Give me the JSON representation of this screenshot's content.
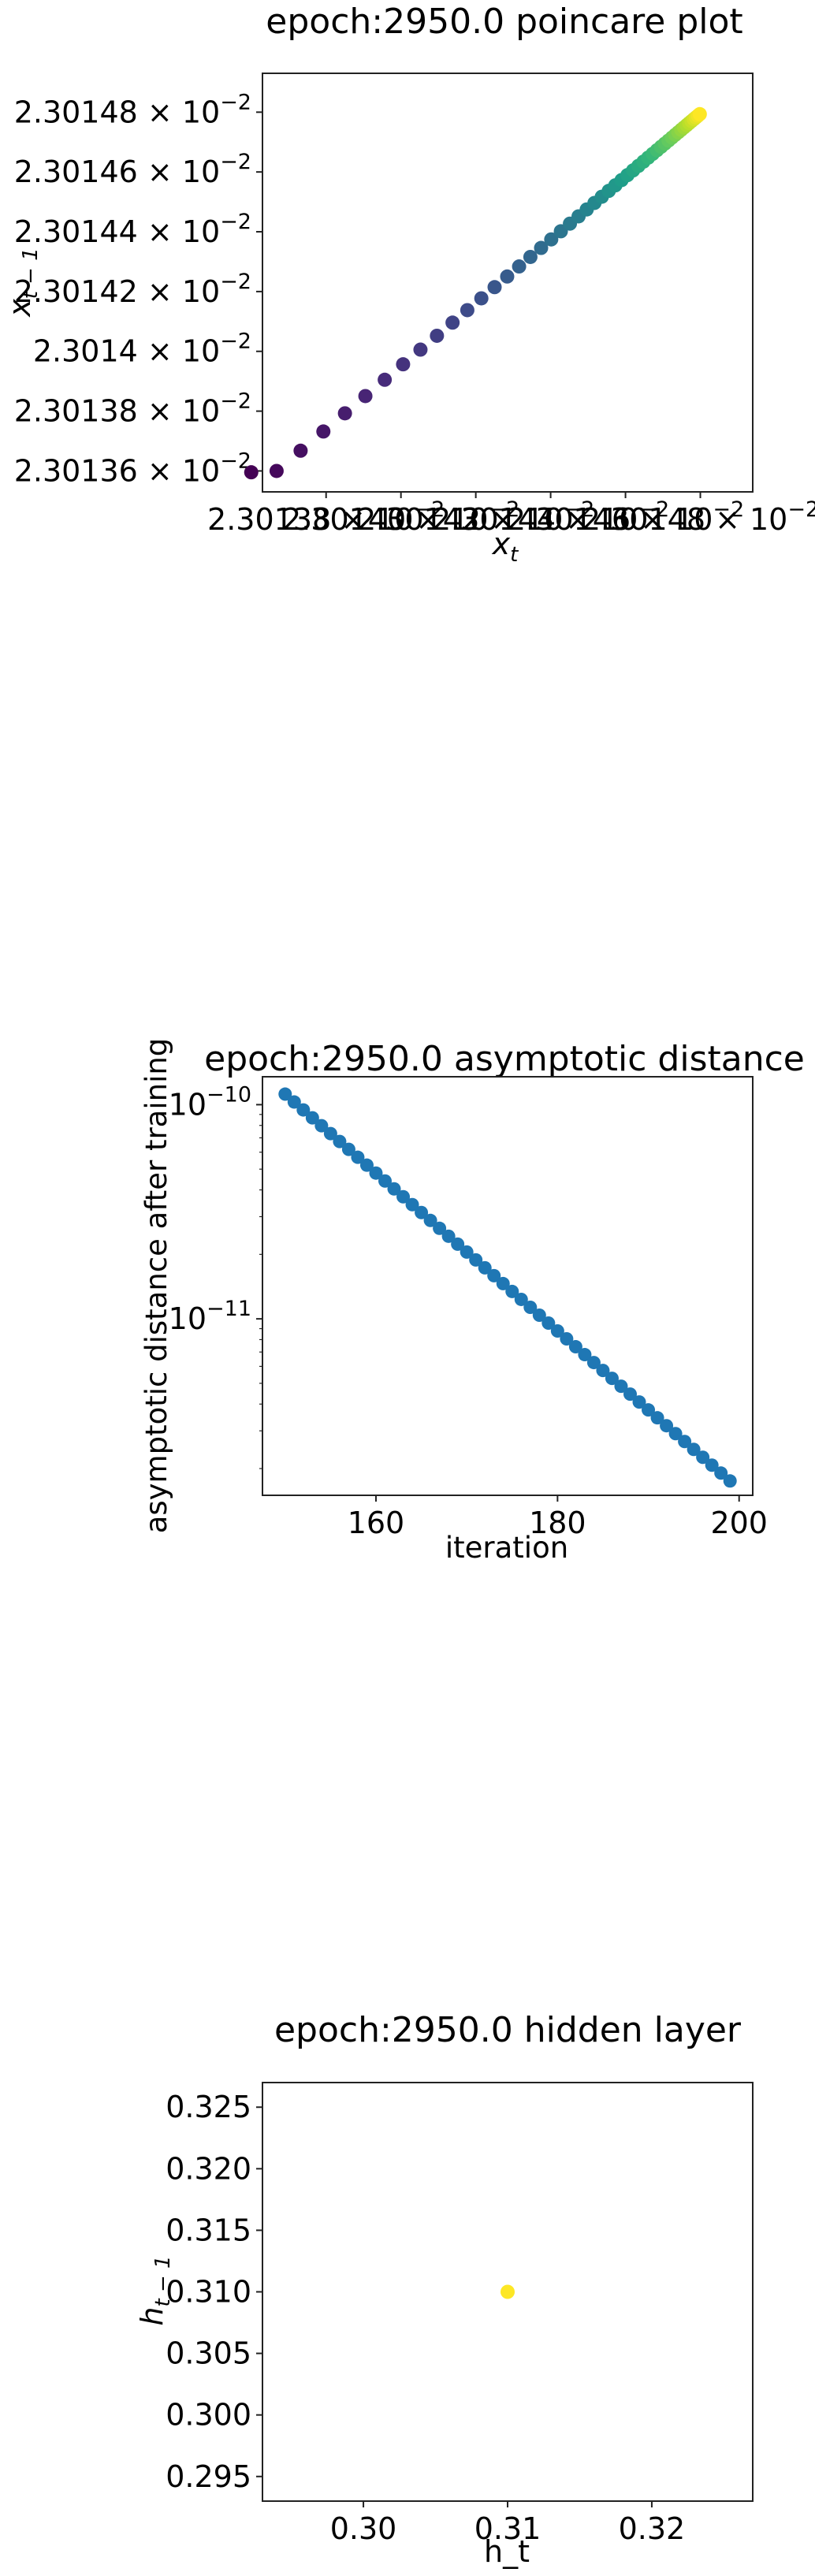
{
  "chart_data": [
    {
      "type": "scatter",
      "title": "epoch:2950.0 poincare plot",
      "xlabel": "x_t",
      "ylabel": "x_{t-1}",
      "x_tick_labels": [
        "2.30138 × 10^-2",
        "2.30140 × 10^-2",
        "2.30142 × 10^-2",
        "2.30144 × 10^-2",
        "2.30146 × 10^-2",
        "2.30148 × 10^-2"
      ],
      "y_tick_labels": [
        "2.30136 × 10^-2",
        "2.30138 × 10^-2",
        "2.3014 × 10^-2",
        "2.30142 × 10^-2",
        "2.30144 × 10^-2",
        "2.30146 × 10^-2",
        "2.30148 × 10^-2"
      ],
      "axis_scale": "log",
      "colormap": "viridis",
      "xlim": [
        0.02301363,
        0.02301494
      ],
      "ylim": [
        0.02301353,
        0.02301493
      ],
      "start_x": 0.0230136,
      "end_x": 0.0230148904,
      "ratio": 0.9475,
      "n_points": 50,
      "grid": false
    },
    {
      "type": "scatter",
      "title": "epoch:2950.0 asymptotic distance",
      "xlabel": "iteration",
      "ylabel": "asymptotic distance after training",
      "x_ticks": [
        160,
        180,
        200
      ],
      "y_major_ticks": [
        1e-10,
        1e-11
      ],
      "y_tick_labels": [
        "10^-10",
        "10^-11"
      ],
      "yscale": "log",
      "xlim": [
        147.5,
        201.5
      ],
      "ylim": [
        1.5e-12,
        1.35e-10
      ],
      "iteration_start": 150,
      "iteration_end": 199,
      "start_value": 1.12e-10,
      "end_value": 1.75e-12,
      "color": "#1f77b4",
      "grid": false
    },
    {
      "type": "scatter",
      "title": "epoch:2950.0 hidden layer",
      "xlabel": "h_t",
      "ylabel": "h_{t-1}",
      "x_ticks": [
        "0.30",
        "0.31",
        "0.32"
      ],
      "y_ticks": [
        "0.295",
        "0.300",
        "0.305",
        "0.310",
        "0.315",
        "0.320",
        "0.325"
      ],
      "xlim": [
        0.293,
        0.327
      ],
      "ylim": [
        0.293,
        0.327
      ],
      "points": [
        {
          "x": 0.31,
          "y": 0.31
        }
      ],
      "color": "#fde725",
      "grid": false
    }
  ]
}
